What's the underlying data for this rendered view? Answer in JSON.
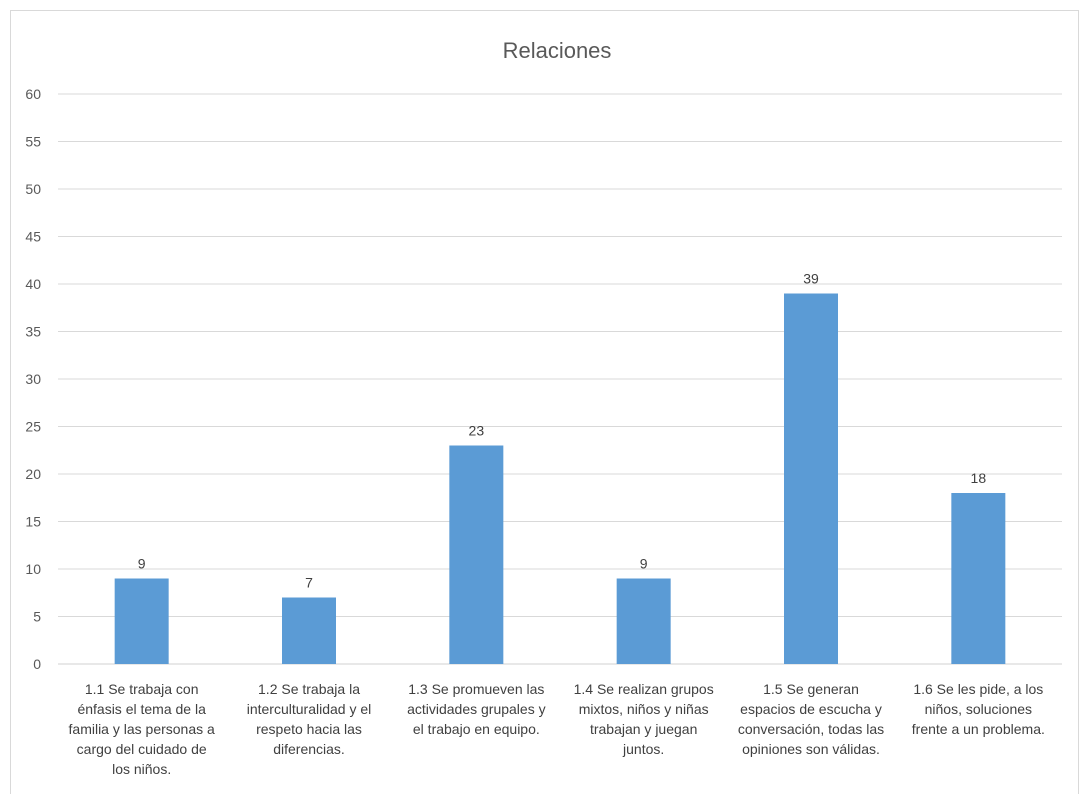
{
  "chart_data": {
    "type": "bar",
    "title": "Relaciones",
    "xlabel": "",
    "ylabel": "",
    "ylim": [
      0,
      60
    ],
    "yticks": [
      0,
      5,
      10,
      15,
      20,
      25,
      30,
      35,
      40,
      45,
      50,
      55,
      60
    ],
    "grid": true,
    "legend": "none",
    "bar_color": "#5B9BD5",
    "categories": [
      "1.1 Se trabaja con énfasis el tema de la familia y las personas a cargo del cuidado de los niños.",
      "1.2 Se trabaja la interculturalidad y el respeto hacia las diferencias.",
      "1.3 Se promueven las actividades grupales y el trabajo en equipo.",
      "1.4 Se realizan grupos mixtos, niños y niñas trabajan y juegan juntos.",
      "1.5 Se generan espacios de escucha y conversación, todas las opiniones son válidas.",
      "1.6 Se les pide, a los niños, soluciones frente a un problema."
    ],
    "category_lines": [
      [
        "1.1  Se trabaja con",
        "énfasis el tema de la",
        "familia y las personas a",
        "cargo del cuidado de",
        "los niños."
      ],
      [
        "1.2  Se trabaja la",
        "interculturalidad y el",
        "respeto hacia las",
        "diferencias."
      ],
      [
        "1.3  Se promueven las",
        "actividades grupales y",
        "el trabajo en equipo."
      ],
      [
        "1.4  Se realizan grupos",
        "mixtos, niños y niñas",
        "trabajan y juegan",
        "juntos."
      ],
      [
        "1.5  Se generan",
        "espacios de escucha y",
        "conversación, todas las",
        "opiniones son válidas."
      ],
      [
        "1.6  Se les pide, a los",
        "niños, soluciones",
        "frente a un problema."
      ]
    ],
    "values": [
      9,
      7,
      23,
      9,
      39,
      18
    ],
    "data_labels": [
      "9",
      "7",
      "23",
      "9",
      "39",
      "18"
    ]
  }
}
